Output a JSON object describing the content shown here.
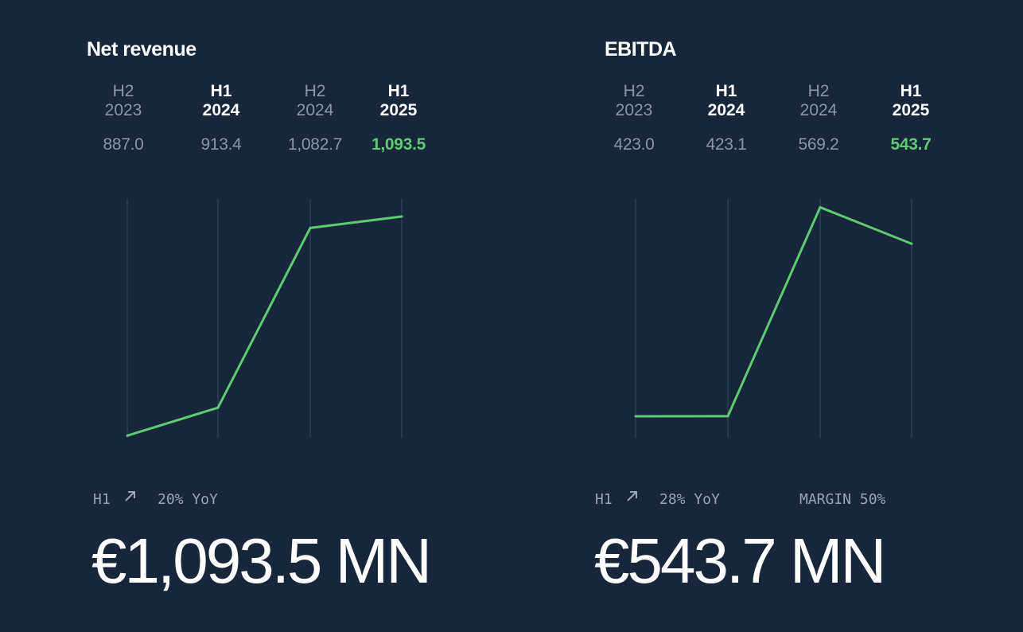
{
  "colors": {
    "background": "#172638",
    "line": "#5dcb73",
    "gridline": "#3a4a5c",
    "muted_text": "#8b97a5",
    "highlight": "#5dcb73"
  },
  "icons": {
    "trend": "arrow-up-right-icon"
  },
  "panels": [
    {
      "title": "Net revenue",
      "columns": [
        {
          "period": "H2",
          "year": "2023",
          "value": "887.0"
        },
        {
          "period": "H1",
          "year": "2024",
          "value": "913.4"
        },
        {
          "period": "H2",
          "year": "2024",
          "value": "1,082.7"
        },
        {
          "period": "H1",
          "year": "2025",
          "value": "1,093.5"
        }
      ],
      "footer": {
        "period": "H1",
        "yoy": "20% YoY",
        "headline": "€1,093.5 MN"
      }
    },
    {
      "title": "EBITDA",
      "columns": [
        {
          "period": "H2",
          "year": "2023",
          "value": "423.0"
        },
        {
          "period": "H1",
          "year": "2024",
          "value": "423.1"
        },
        {
          "period": "H2",
          "year": "2024",
          "value": "569.2"
        },
        {
          "period": "H1",
          "year": "2025",
          "value": "543.7"
        }
      ],
      "footer": {
        "period": "H1",
        "yoy": "28% YoY",
        "margin": "MARGIN 50%",
        "headline": "€543.7 MN"
      }
    }
  ],
  "chart_data": [
    {
      "type": "line",
      "title": "Net revenue",
      "categories": [
        "H2 2023",
        "H1 2024",
        "H2 2024",
        "H1 2025"
      ],
      "series": [
        {
          "values": [
            887.0,
            913.4,
            1082.7,
            1093.5
          ]
        }
      ],
      "ylim": [
        885,
        1110
      ],
      "grid": "vertical"
    },
    {
      "type": "line",
      "title": "EBITDA",
      "categories": [
        "H2 2023",
        "H1 2024",
        "H2 2024",
        "H1 2025"
      ],
      "series": [
        {
          "values": [
            423.0,
            423.1,
            569.2,
            543.7
          ]
        }
      ],
      "ylim": [
        408,
        575
      ],
      "grid": "vertical"
    }
  ]
}
